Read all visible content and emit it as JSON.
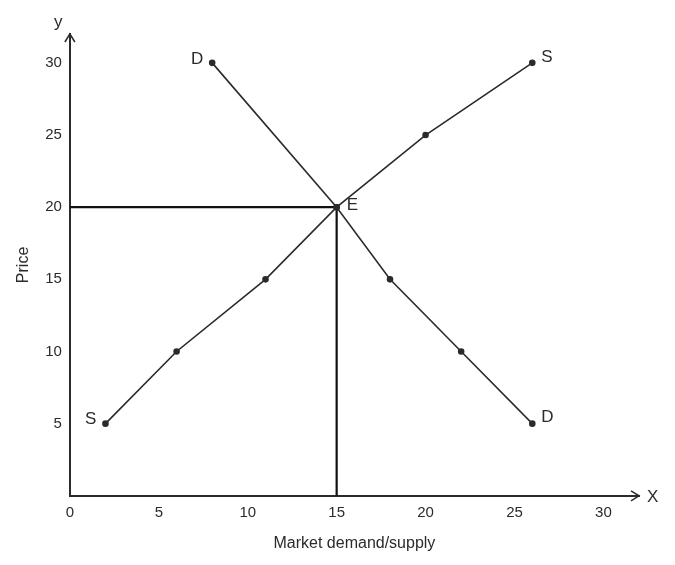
{
  "chart_data": {
    "type": "line",
    "x_label": "Market demand/supply",
    "y_label": "Price",
    "axis_letters": {
      "x": "X",
      "y": "y"
    },
    "xlim": [
      0,
      32
    ],
    "xticks": [
      0,
      5,
      10,
      15,
      20,
      25,
      30
    ],
    "ylim": [
      0,
      32
    ],
    "yticks": [
      5,
      10,
      15,
      20,
      25,
      30
    ],
    "grid": false,
    "marker": "circle",
    "series": [
      {
        "name": "D",
        "color": "#2b2b2b",
        "x": [
          8,
          15,
          18,
          22,
          26
        ],
        "values": [
          30,
          20,
          15,
          10,
          5
        ]
      },
      {
        "name": "S",
        "color": "#2b2b2b",
        "x": [
          2,
          6,
          11,
          15,
          20,
          26
        ],
        "values": [
          5,
          10,
          15,
          20,
          25,
          30
        ]
      }
    ],
    "equilibrium": {
      "label": "E",
      "x": 15,
      "y": 20,
      "color": "#111111"
    }
  }
}
